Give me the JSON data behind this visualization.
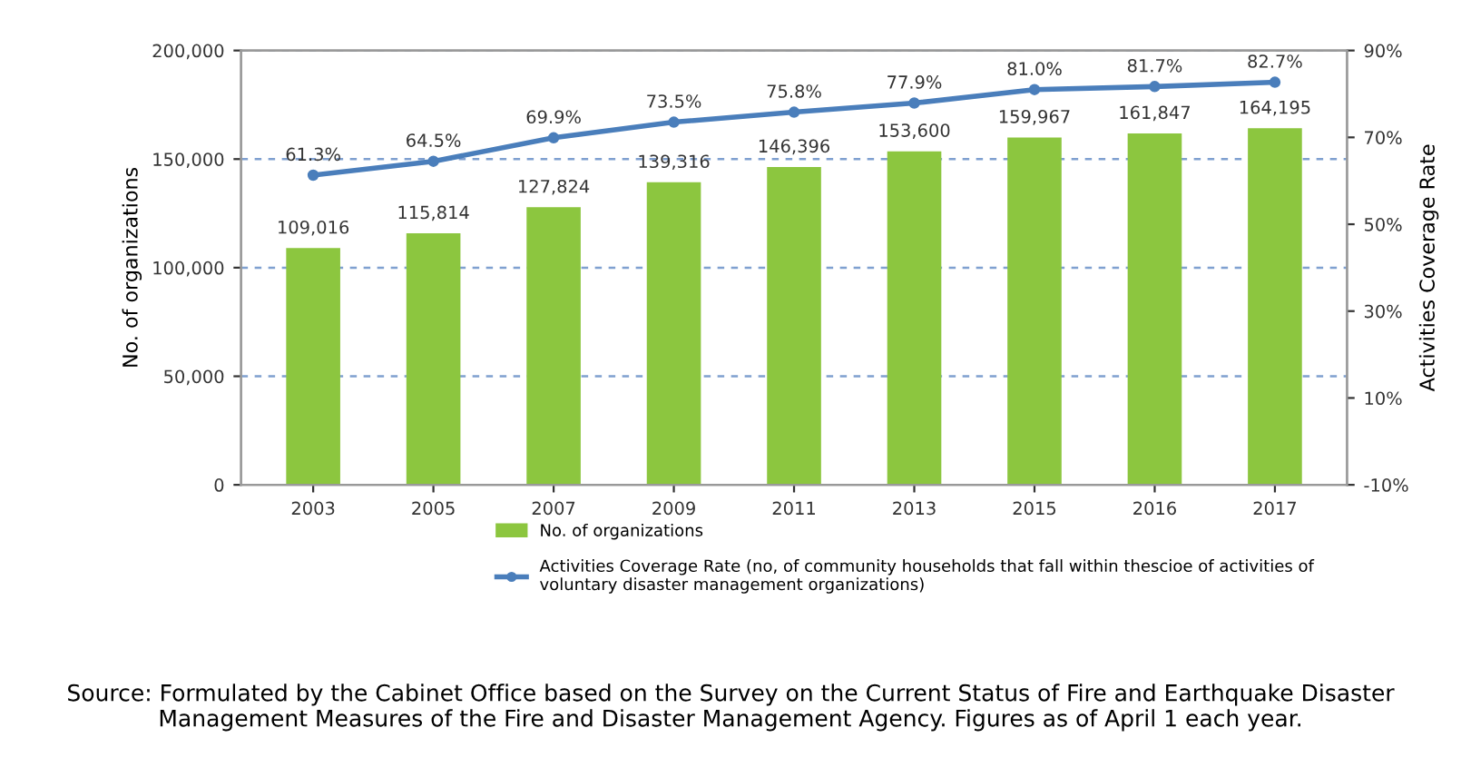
{
  "chart_data": {
    "type": "bar",
    "categories": [
      "2003",
      "2005",
      "2007",
      "2009",
      "2011",
      "2013",
      "2015",
      "2016",
      "2017"
    ],
    "series": [
      {
        "name": "No. of organizations",
        "color": "#8cc63f",
        "values": [
          109016,
          115814,
          127824,
          139316,
          146396,
          153600,
          159967,
          161847,
          164195
        ],
        "value_labels": [
          "109,016",
          "115,814",
          "127,824",
          "139,316",
          "146,396",
          "153,600",
          "159,967",
          "161,847",
          "164,195"
        ]
      },
      {
        "name": "Activities Coverage Rate (no, of community households that fall within thescioe of activities of voluntary disaster management organizations)",
        "color": "#4a7ebb",
        "type": "line",
        "axis": "y2",
        "marker": "circle",
        "line_style": "solid",
        "values": [
          61.3,
          64.5,
          69.9,
          73.5,
          75.8,
          77.9,
          81.0,
          81.7,
          82.7
        ],
        "value_labels": [
          "61.3%",
          "64.5%",
          "69.9%",
          "73.5%",
          "75.8%",
          "77.9%",
          "81.0%",
          "81.7%",
          "82.7%"
        ]
      }
    ],
    "ylabel": "No. of organizations",
    "y2label": "Activities Coverage Rate",
    "ylim": [
      0,
      200000
    ],
    "yticks": [
      {
        "value": 0,
        "label": "0"
      },
      {
        "value": 50000,
        "label": "50,000"
      },
      {
        "value": 100000,
        "label": "100,000"
      },
      {
        "value": 150000,
        "label": "150,000"
      },
      {
        "value": 200000,
        "label": "200,000"
      }
    ],
    "y2lim": [
      -10,
      90
    ],
    "y2ticks": [
      {
        "value": -10,
        "label": "-10%"
      },
      {
        "value": 10,
        "label": "10%"
      },
      {
        "value": 30,
        "label": "30%"
      },
      {
        "value": 50,
        "label": "50%"
      },
      {
        "value": 70,
        "label": "70%"
      },
      {
        "value": 90,
        "label": "90%"
      }
    ],
    "grid": "y",
    "legend": "bottom",
    "annotations": [
      "Source: Formulated by the Cabinet Office based on the Survey on the Current Status of Fire and Earthquake Disaster Management Measures of the Fire and Disaster Management Agency. Figures as of April 1 each year."
    ]
  }
}
